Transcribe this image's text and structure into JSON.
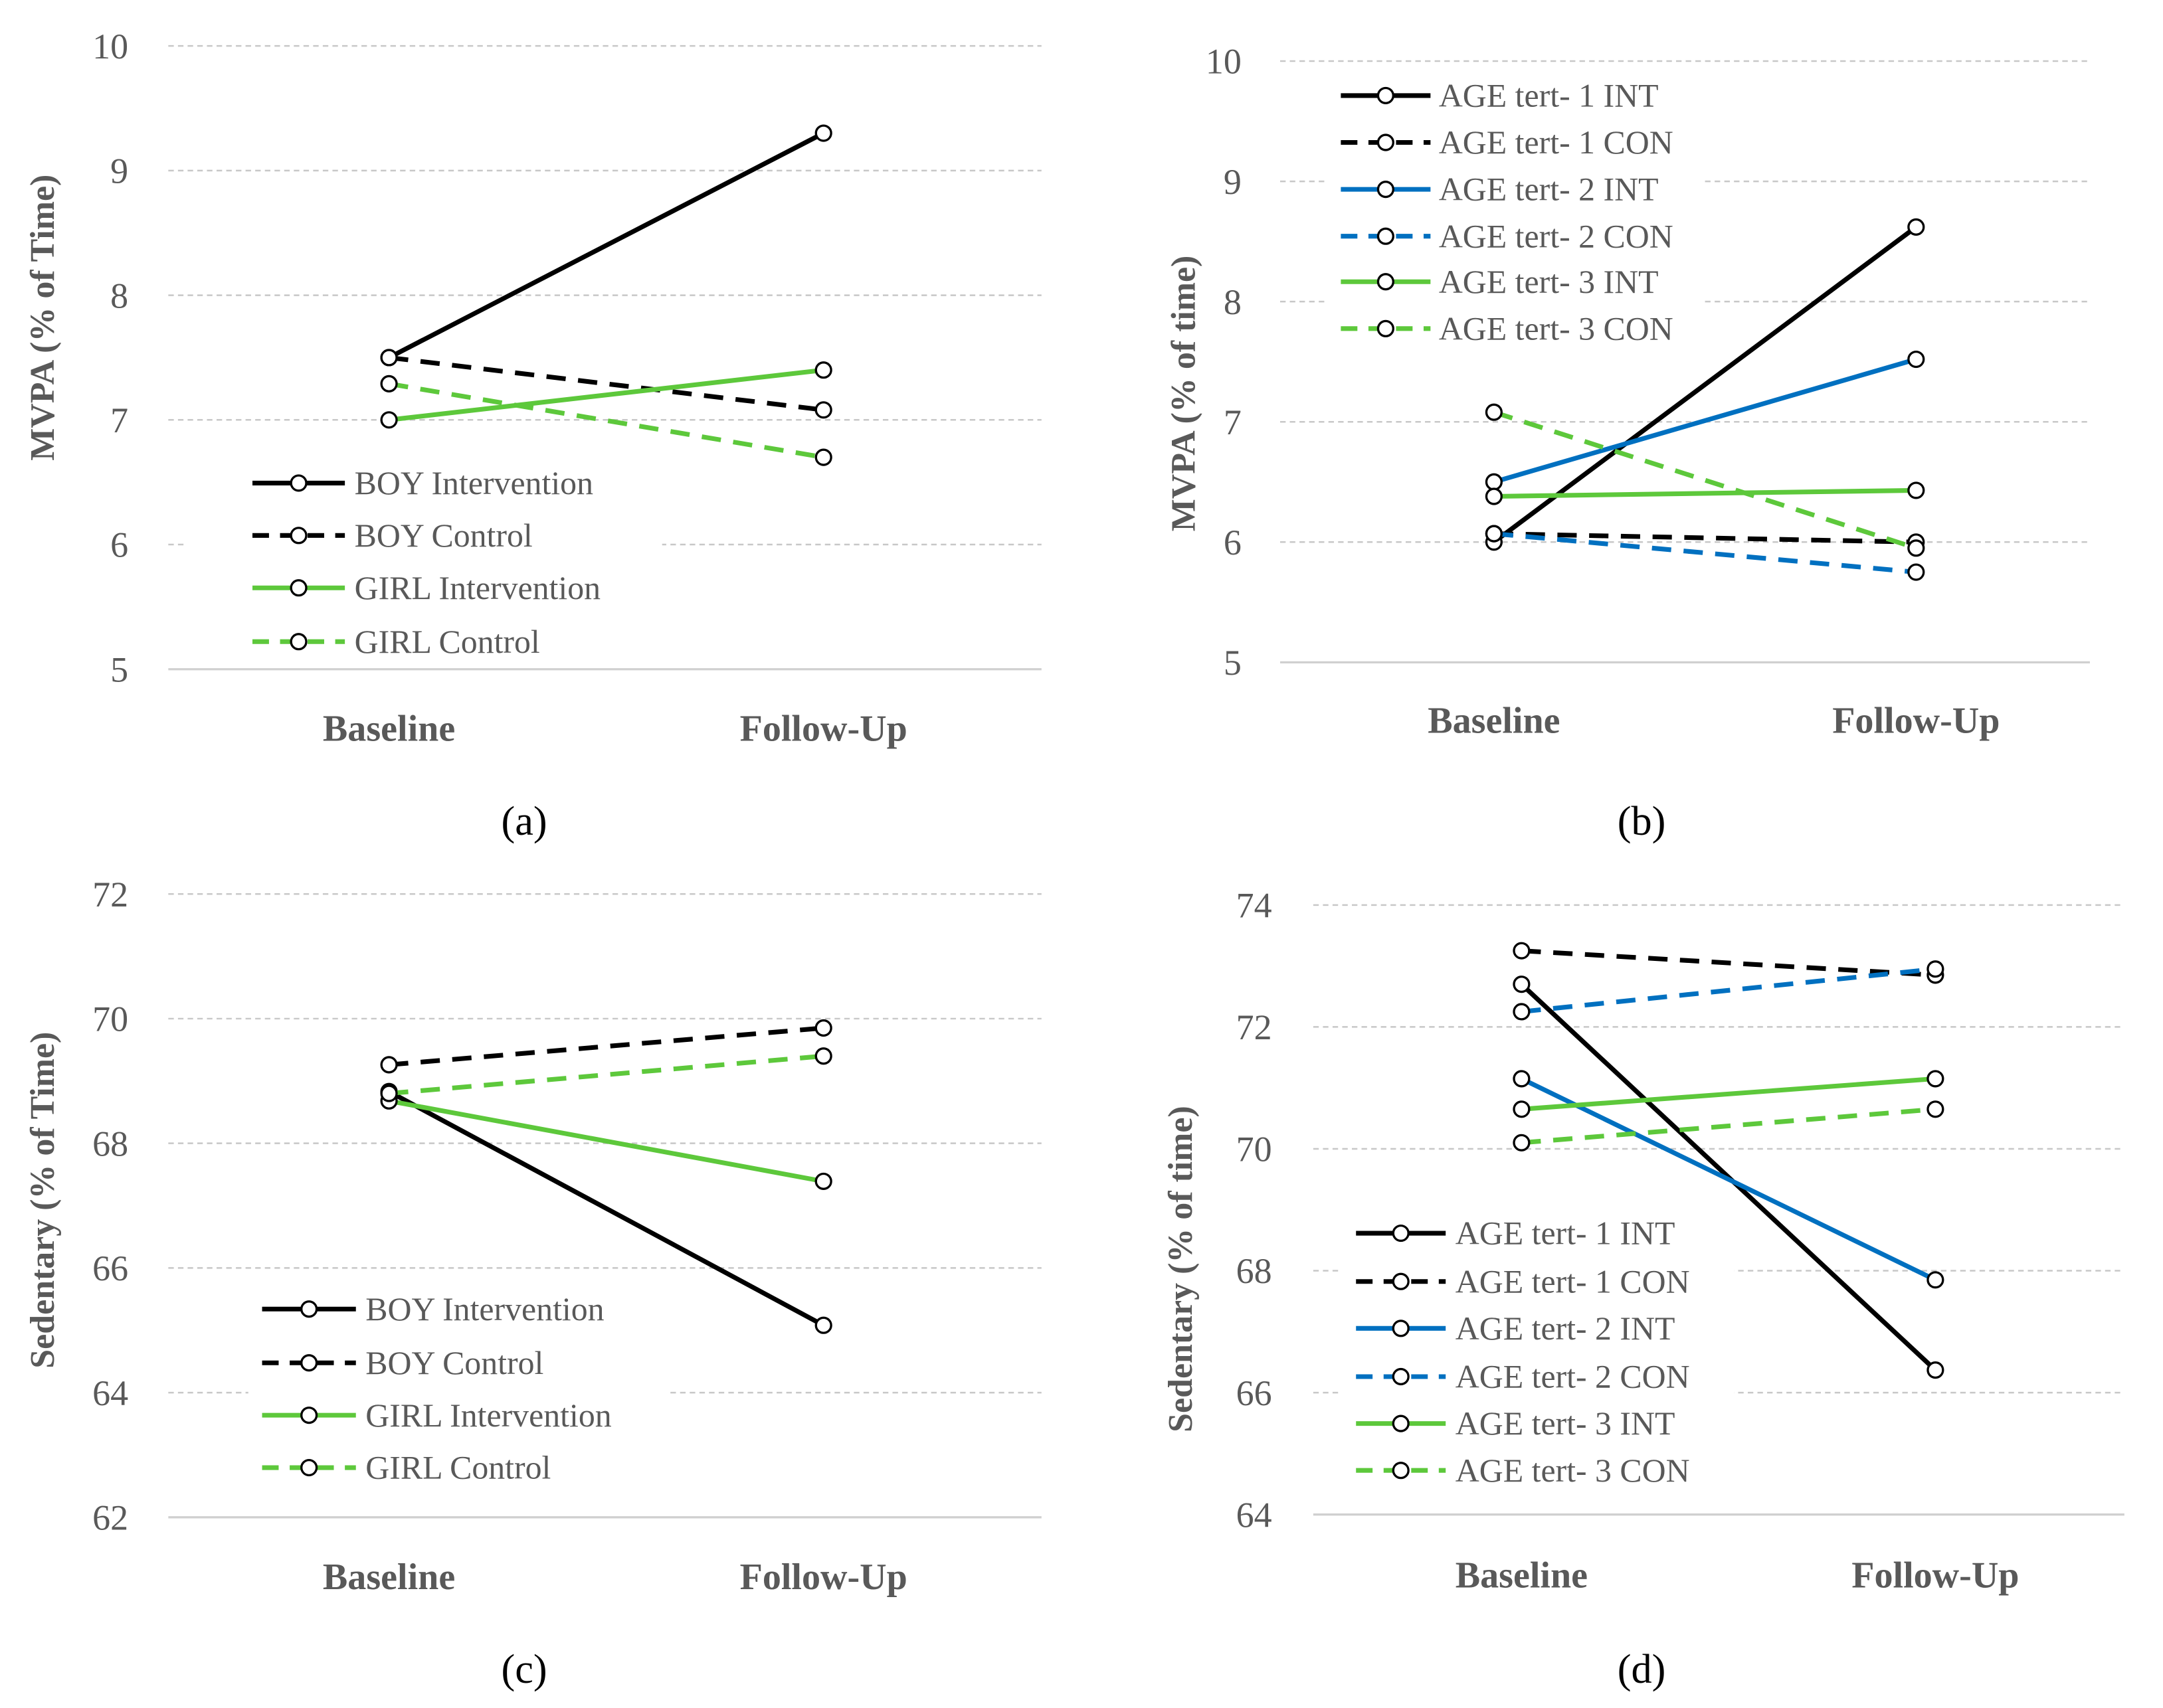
{
  "chart_data": [
    {
      "type": "line",
      "panel_label": "(a)",
      "panel_letter": "a",
      "title": "",
      "xlabel": "",
      "ylabel": "MVPA (% of Time)",
      "categories": [
        "Baseline",
        "Follow-Up"
      ],
      "ylim": [
        5,
        10
      ],
      "yticks": [
        "5",
        "6",
        "7",
        "8",
        "9",
        "10"
      ],
      "grid": true,
      "legend_position": "bottom-left",
      "series": [
        {
          "name": "BOY Intervention",
          "color": "#000000",
          "dashed": false,
          "values": [
            7.5,
            9.3
          ]
        },
        {
          "name": "BOY Control",
          "color": "#000000",
          "dashed": true,
          "values": [
            7.5,
            7.08
          ]
        },
        {
          "name": "GIRL Intervention",
          "color": "#5DC83B",
          "dashed": false,
          "values": [
            7.0,
            7.4
          ]
        },
        {
          "name": "GIRL Control",
          "color": "#5DC83B",
          "dashed": true,
          "values": [
            7.29,
            6.7
          ]
        }
      ]
    },
    {
      "type": "line",
      "panel_label": "(b)",
      "panel_letter": "b",
      "title": "",
      "xlabel": "",
      "ylabel": "MVPA (% of time)",
      "categories": [
        "Baseline",
        "Follow-Up"
      ],
      "ylim": [
        5,
        10
      ],
      "yticks": [
        "5",
        "6",
        "7",
        "8",
        "9",
        "10"
      ],
      "grid": true,
      "legend_position": "top-left",
      "series": [
        {
          "name": "AGE tert- 1 INT",
          "color": "#000000",
          "dashed": false,
          "values": [
            6.0,
            8.62
          ]
        },
        {
          "name": "AGE tert- 1 CON",
          "color": "#000000",
          "dashed": true,
          "values": [
            6.07,
            6.0
          ]
        },
        {
          "name": "AGE tert- 2 INT",
          "color": "#0070C0",
          "dashed": false,
          "values": [
            6.5,
            7.52
          ]
        },
        {
          "name": "AGE tert- 2 CON",
          "color": "#0070C0",
          "dashed": true,
          "values": [
            6.07,
            5.75
          ]
        },
        {
          "name": "AGE tert- 3 INT",
          "color": "#5DC83B",
          "dashed": false,
          "values": [
            6.38,
            6.43
          ]
        },
        {
          "name": "AGE tert- 3 CON",
          "color": "#5DC83B",
          "dashed": true,
          "values": [
            7.08,
            5.95
          ]
        }
      ]
    },
    {
      "type": "line",
      "panel_label": "(c)",
      "panel_letter": "c",
      "title": "",
      "xlabel": "",
      "ylabel": "Sedentary (% of Time)",
      "categories": [
        "Baseline",
        "Follow-Up"
      ],
      "ylim": [
        62,
        72
      ],
      "yticks": [
        "62",
        "64",
        "66",
        "68",
        "70",
        "72"
      ],
      "grid": true,
      "legend_position": "bottom-left",
      "series": [
        {
          "name": "BOY Intervention",
          "color": "#000000",
          "dashed": false,
          "values": [
            68.83,
            65.08
          ]
        },
        {
          "name": "BOY Control",
          "color": "#000000",
          "dashed": true,
          "values": [
            69.26,
            69.85
          ]
        },
        {
          "name": "GIRL Intervention",
          "color": "#5DC83B",
          "dashed": false,
          "values": [
            68.68,
            67.39
          ]
        },
        {
          "name": "GIRL Control",
          "color": "#5DC83B",
          "dashed": true,
          "values": [
            68.8,
            69.4
          ]
        }
      ]
    },
    {
      "type": "line",
      "panel_label": "(d)",
      "panel_letter": "d",
      "title": "",
      "xlabel": "",
      "ylabel": "Sedentary (% of time)",
      "categories": [
        "Baseline",
        "Follow-Up"
      ],
      "ylim": [
        64,
        74
      ],
      "yticks": [
        "64",
        "66",
        "68",
        "70",
        "72",
        "74"
      ],
      "grid": true,
      "legend_position": "bottom-left",
      "series": [
        {
          "name": "AGE tert- 1 INT",
          "color": "#000000",
          "dashed": false,
          "values": [
            72.7,
            66.37
          ]
        },
        {
          "name": "AGE tert- 1 CON",
          "color": "#000000",
          "dashed": true,
          "values": [
            73.25,
            72.85
          ]
        },
        {
          "name": "AGE tert- 2 INT",
          "color": "#0070C0",
          "dashed": false,
          "values": [
            71.15,
            67.85
          ]
        },
        {
          "name": "AGE tert- 2 CON",
          "color": "#0070C0",
          "dashed": true,
          "values": [
            72.25,
            72.95
          ]
        },
        {
          "name": "AGE tert- 3 INT",
          "color": "#5DC83B",
          "dashed": false,
          "values": [
            70.65,
            71.15
          ]
        },
        {
          "name": "AGE tert- 3 CON",
          "color": "#5DC83B",
          "dashed": true,
          "values": [
            70.1,
            70.65
          ]
        }
      ]
    }
  ]
}
